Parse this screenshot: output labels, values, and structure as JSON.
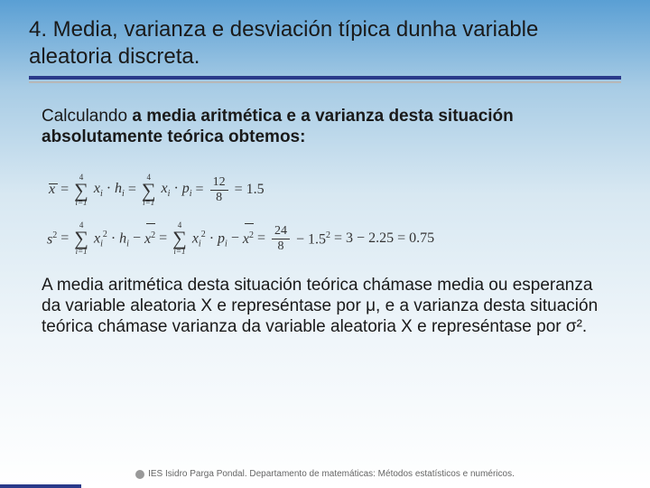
{
  "title": "4. Media, varianza e desviación típica dunha variable aleatoria discreta.",
  "intro_prefix": "Calculando ",
  "intro_bold": "a media aritmética e a varianza desta situación absolutamente teórica obtemos:",
  "formula1": {
    "lhs": "x",
    "eq": "=",
    "sum_top": "4",
    "sum_bot": "i=1",
    "term1_a": "x",
    "term1_sub": "i",
    "dot": "·",
    "term1_b": "h",
    "term1_b_sub": "i",
    "term2_a": "x",
    "term2_sub": "i",
    "term2_b": "p",
    "term2_b_sub": "i",
    "frac_top": "12",
    "frac_bot": "8",
    "result": "= 1.5"
  },
  "formula2": {
    "lhs": "s",
    "lhs_sup": "2",
    "eq": "=",
    "sum_top": "4",
    "sum_bot": "i=1",
    "t1_a": "x",
    "t1_sub": "i",
    "t1_sup": "2",
    "dot": "·",
    "t1_b": "h",
    "t1_b_sub": "i",
    "minus": "−",
    "xbar": "x",
    "xbar_sup": "2",
    "t2_a": "x",
    "t2_sub": "i",
    "t2_sup": "2",
    "t2_b": "p",
    "t2_b_sub": "i",
    "frac_top": "24",
    "frac_bot": "8",
    "tail": "− 1.5",
    "tail_sup": "2",
    "result": "= 3 − 2.25 = 0.75"
  },
  "paragraph": "A media aritmética desta situación teórica chámase media ou esperanza da variable aleatoria X e represéntase por μ, e a varianza desta situación teórica chámase varianza da variable aleatoria X e represéntase por σ².",
  "footer": "IES Isidro Parga Pondal. Departamento de matemáticas: Métodos estatísticos e numéricos.",
  "colors": {
    "underline": "#2a3a8a",
    "shadow": "#b8b8b8",
    "text": "#1a1a1a",
    "footer": "#666666"
  }
}
